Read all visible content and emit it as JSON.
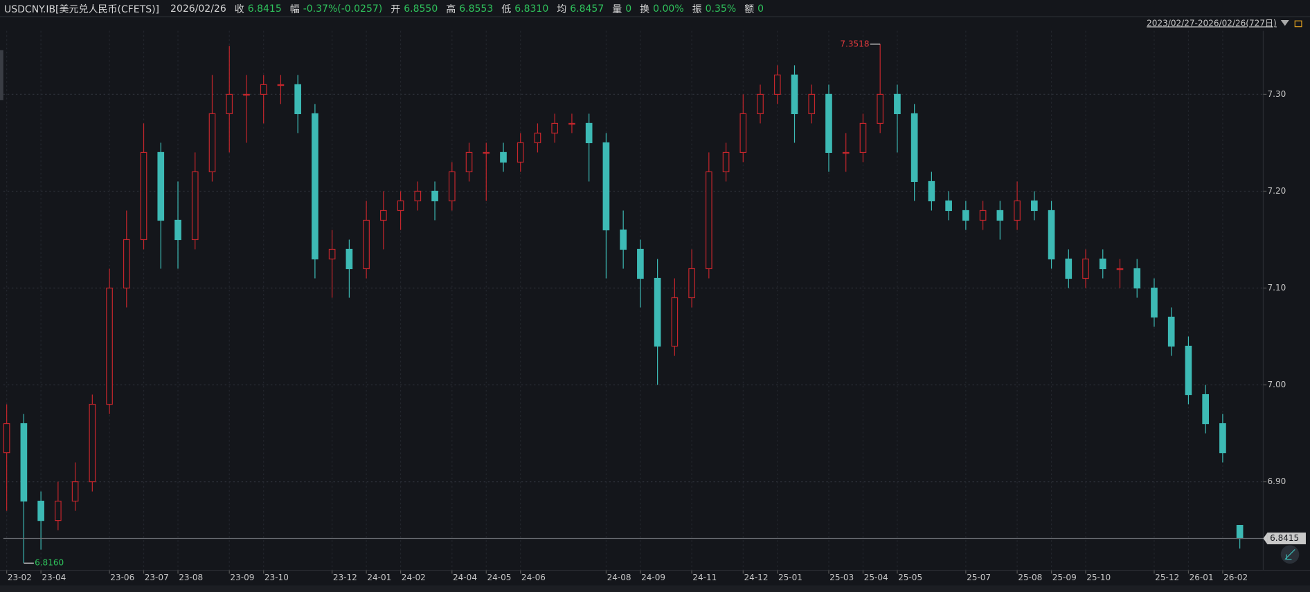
{
  "header": {
    "symbol": "USDCNY.IB[美元兑人民币(CFETS)]",
    "date": "2026/02/26",
    "items": [
      {
        "label": "收",
        "value": "6.8415"
      },
      {
        "label": "幅",
        "value": "-0.37%(-0.0257)"
      },
      {
        "label": "开",
        "value": "6.8550"
      },
      {
        "label": "高",
        "value": "6.8553"
      },
      {
        "label": "低",
        "value": "6.8310"
      },
      {
        "label": "均",
        "value": "6.8457"
      },
      {
        "label": "量",
        "value": "0"
      },
      {
        "label": "换",
        "value": "0.00%"
      },
      {
        "label": "振",
        "value": "0.35%"
      },
      {
        "label": "额",
        "value": "0"
      }
    ],
    "range": "2023/02/27-2026/02/26(727日)"
  },
  "chart_data": {
    "type": "candlestick",
    "up_color": "#c4262c",
    "down_color": "#3dbab5",
    "grid": true,
    "categories": [
      "23-02",
      null,
      "23-04",
      null,
      null,
      null,
      "23-06",
      null,
      "23-07",
      null,
      "23-08",
      null,
      null,
      "23-09",
      null,
      "23-10",
      null,
      null,
      null,
      "23-12",
      null,
      "24-01",
      null,
      "24-02",
      null,
      null,
      "24-04",
      null,
      "24-05",
      null,
      "24-06",
      null,
      null,
      null,
      null,
      "24-08",
      null,
      "24-09",
      null,
      null,
      "24-11",
      null,
      null,
      "24-12",
      null,
      "25-01",
      null,
      null,
      "25-03",
      null,
      "25-04",
      null,
      "25-05",
      null,
      null,
      null,
      "25-07",
      null,
      null,
      "25-08",
      null,
      "25-09",
      null,
      "25-10",
      null,
      null,
      null,
      "25-12",
      null,
      "26-01",
      null,
      "26-02",
      null
    ],
    "open": [
      6.93,
      6.96,
      6.88,
      6.86,
      6.88,
      6.9,
      6.98,
      7.1,
      7.15,
      7.24,
      7.17,
      7.15,
      7.22,
      7.28,
      7.3,
      7.3,
      7.31,
      7.31,
      7.28,
      7.13,
      7.14,
      7.12,
      7.17,
      7.18,
      7.19,
      7.2,
      7.19,
      7.22,
      7.24,
      7.24,
      7.23,
      7.25,
      7.26,
      7.27,
      7.27,
      7.25,
      7.16,
      7.14,
      7.11,
      7.04,
      7.09,
      7.12,
      7.22,
      7.24,
      7.28,
      7.3,
      7.32,
      7.28,
      7.3,
      7.24,
      7.24,
      7.27,
      7.3,
      7.28,
      7.21,
      7.19,
      7.18,
      7.17,
      7.18,
      7.17,
      7.19,
      7.18,
      7.13,
      7.11,
      7.13,
      7.12,
      7.12,
      7.1,
      7.07,
      7.04,
      6.99,
      6.96,
      6.855
    ],
    "high": [
      6.98,
      6.97,
      6.89,
      6.9,
      6.92,
      6.99,
      7.12,
      7.18,
      7.27,
      7.25,
      7.21,
      7.24,
      7.32,
      7.35,
      7.32,
      7.32,
      7.32,
      7.32,
      7.29,
      7.16,
      7.15,
      7.19,
      7.2,
      7.2,
      7.21,
      7.21,
      7.23,
      7.25,
      7.25,
      7.25,
      7.26,
      7.27,
      7.28,
      7.28,
      7.28,
      7.26,
      7.18,
      7.15,
      7.13,
      7.11,
      7.14,
      7.24,
      7.25,
      7.3,
      7.31,
      7.33,
      7.33,
      7.31,
      7.31,
      7.26,
      7.28,
      7.3518,
      7.31,
      7.29,
      7.22,
      7.2,
      7.19,
      7.19,
      7.19,
      7.21,
      7.2,
      7.19,
      7.14,
      7.14,
      7.14,
      7.13,
      7.13,
      7.11,
      7.08,
      7.05,
      7.0,
      6.97,
      6.8553
    ],
    "low": [
      6.87,
      6.816,
      6.83,
      6.85,
      6.87,
      6.89,
      6.97,
      7.08,
      7.14,
      7.12,
      7.12,
      7.14,
      7.21,
      7.24,
      7.25,
      7.27,
      7.29,
      7.26,
      7.11,
      7.09,
      7.09,
      7.11,
      7.14,
      7.16,
      7.18,
      7.17,
      7.18,
      7.21,
      7.19,
      7.22,
      7.22,
      7.24,
      7.25,
      7.26,
      7.21,
      7.11,
      7.12,
      7.08,
      7.0,
      7.03,
      7.08,
      7.11,
      7.21,
      7.23,
      7.27,
      7.29,
      7.25,
      7.27,
      7.22,
      7.22,
      7.23,
      7.26,
      7.24,
      7.19,
      7.18,
      7.17,
      7.16,
      7.16,
      7.15,
      7.16,
      7.17,
      7.12,
      7.1,
      7.1,
      7.11,
      7.1,
      7.09,
      7.06,
      7.03,
      6.98,
      6.95,
      6.92,
      6.831
    ],
    "close": [
      6.96,
      6.88,
      6.86,
      6.88,
      6.9,
      6.98,
      7.1,
      7.15,
      7.24,
      7.17,
      7.15,
      7.22,
      7.28,
      7.3,
      7.3,
      7.31,
      7.31,
      7.28,
      7.13,
      7.14,
      7.12,
      7.17,
      7.18,
      7.19,
      7.2,
      7.19,
      7.22,
      7.24,
      7.24,
      7.23,
      7.25,
      7.26,
      7.27,
      7.27,
      7.25,
      7.16,
      7.14,
      7.11,
      7.04,
      7.09,
      7.12,
      7.22,
      7.24,
      7.28,
      7.3,
      7.32,
      7.28,
      7.3,
      7.24,
      7.24,
      7.27,
      7.3,
      7.28,
      7.21,
      7.19,
      7.18,
      7.17,
      7.18,
      7.17,
      7.19,
      7.18,
      7.13,
      7.11,
      7.13,
      7.12,
      7.12,
      7.1,
      7.07,
      7.04,
      6.99,
      6.96,
      6.93,
      6.8415
    ],
    "ylim": [
      6.8086,
      7.3655
    ],
    "yticks": [
      {
        "value": 6.9,
        "label": "6.90"
      },
      {
        "value": 7,
        "label": "7.00"
      },
      {
        "value": 7.1,
        "label": "7.10"
      },
      {
        "value": 7.2,
        "label": "7.20"
      },
      {
        "value": 7.3,
        "label": "7.30"
      }
    ],
    "high_marker": 7.3518,
    "low_marker": {
      "value": 6.816,
      "label": "6.8160"
    },
    "last_price": 6.8415
  }
}
